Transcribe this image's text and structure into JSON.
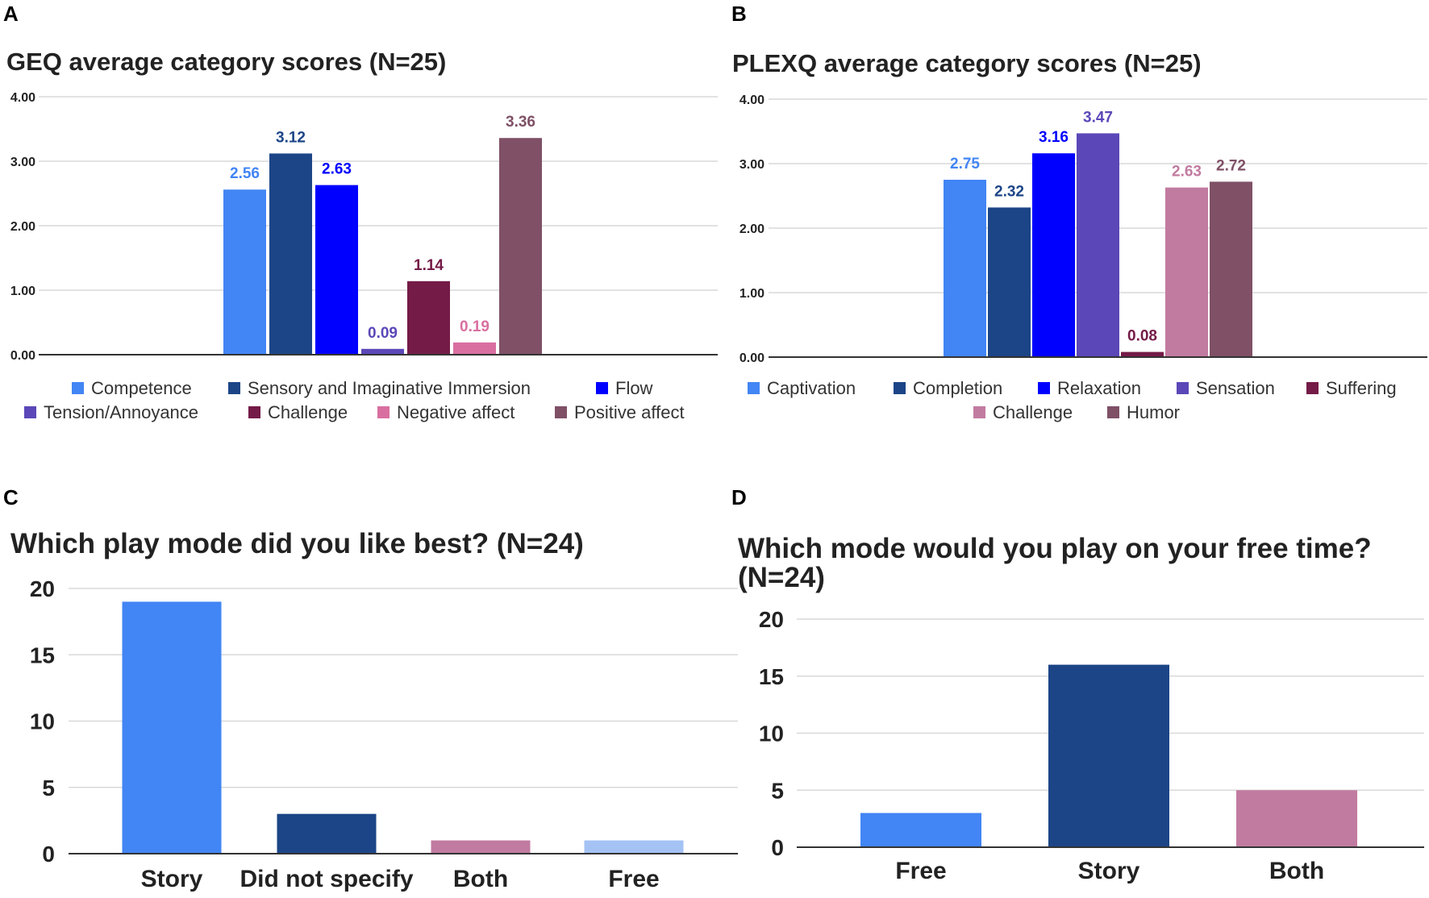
{
  "chart_data": [
    {
      "panel": "A",
      "type": "bar",
      "title": "GEQ average category scores (N=25)",
      "ylim": [
        0,
        4
      ],
      "yticks": [
        "0.00",
        "1.00",
        "2.00",
        "3.00",
        "4.00"
      ],
      "categories": [
        "Competence",
        "Sensory and Imaginative Immersion",
        "Flow",
        "Tension/Annoyance",
        "Challenge",
        "Negative affect",
        "Positive affect"
      ],
      "values": [
        2.56,
        3.12,
        2.63,
        0.09,
        1.14,
        0.19,
        3.36
      ],
      "value_labels": [
        "2.56",
        "3.12",
        "2.63",
        "0.09",
        "1.14",
        "0.19",
        "3.36"
      ],
      "colors": [
        "#4285f4",
        "#1c4587",
        "#0000ff",
        "#5b47b8",
        "#741b47",
        "#d96fa0",
        "#7f5066"
      ],
      "legend": [
        [
          "Competence",
          "Sensory and Imaginative Immersion",
          "Flow"
        ],
        [
          "Tension/Annoyance",
          "Challenge",
          "Negative affect",
          "Positive affect"
        ]
      ]
    },
    {
      "panel": "B",
      "type": "bar",
      "title": "PLEXQ average category scores (N=25)",
      "ylim": [
        0,
        4
      ],
      "yticks": [
        "0.00",
        "1.00",
        "2.00",
        "3.00",
        "4.00"
      ],
      "categories": [
        "Captivation",
        "Completion",
        "Relaxation",
        "Sensation",
        "Suffering",
        "Challenge",
        "Humor"
      ],
      "values": [
        2.75,
        2.32,
        3.16,
        3.47,
        0.08,
        2.63,
        2.72
      ],
      "value_labels": [
        "2.75",
        "2.32",
        "3.16",
        "3.47",
        "0.08",
        "2.63",
        "2.72"
      ],
      "colors": [
        "#4285f4",
        "#1c4587",
        "#0000ff",
        "#5b47b8",
        "#741b47",
        "#c27ba0",
        "#7f5066"
      ],
      "legend": [
        [
          "Captivation",
          "Completion",
          "Relaxation",
          "Sensation",
          "Suffering"
        ],
        [
          "Challenge",
          "Humor"
        ]
      ]
    },
    {
      "panel": "C",
      "type": "bar",
      "title": "Which play mode did you like best? (N=24)",
      "ylim": [
        0,
        20
      ],
      "yticks": [
        "0",
        "5",
        "10",
        "15",
        "20"
      ],
      "categories": [
        "Story",
        "Did not specify",
        "Both",
        "Free"
      ],
      "values": [
        19,
        3,
        1,
        1
      ],
      "colors": [
        "#4285f4",
        "#1c4587",
        "#c27ba0",
        "#a4c2f4"
      ]
    },
    {
      "panel": "D",
      "type": "bar",
      "title": [
        "Which mode would you play on your free time?",
        "(N=24)"
      ],
      "ylim": [
        0,
        20
      ],
      "yticks": [
        "0",
        "5",
        "10",
        "15",
        "20"
      ],
      "categories": [
        "Free",
        "Story",
        "Both"
      ],
      "values": [
        3,
        16,
        5
      ],
      "colors": [
        "#4285f4",
        "#1c4587",
        "#c27ba0"
      ]
    }
  ]
}
